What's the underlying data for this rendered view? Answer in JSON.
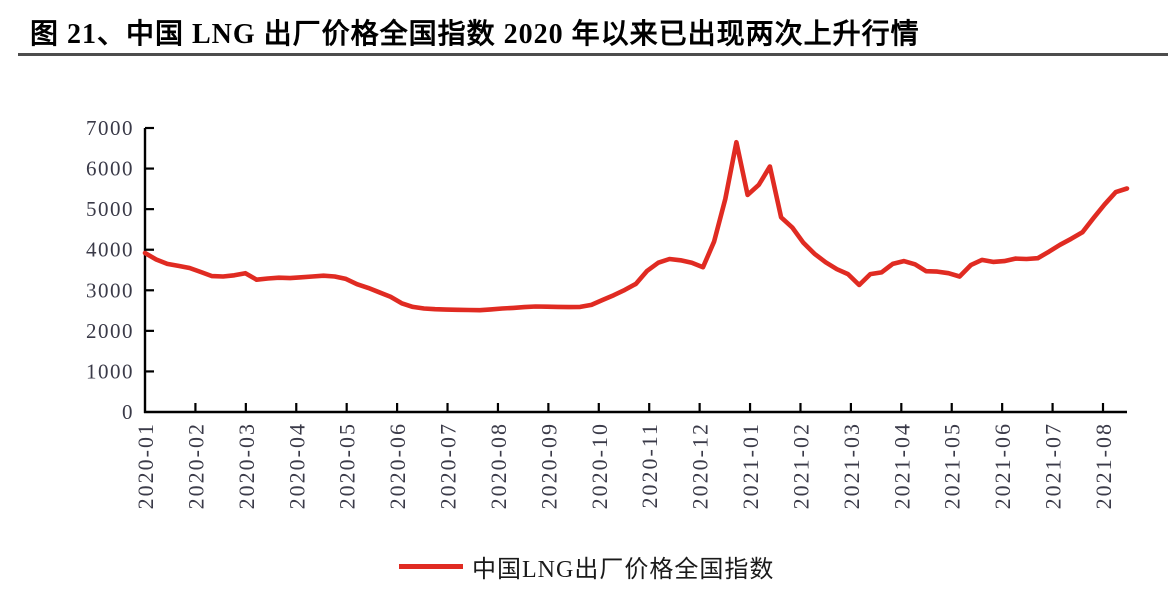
{
  "figure": {
    "title": "图 21、中国 LNG 出厂价格全国指数 2020 年以来已出现两次上升行情",
    "title_color": "#000000",
    "divider_color": "#4d4d4d"
  },
  "chart_data": {
    "type": "line",
    "title": "",
    "xlabel": "",
    "ylabel": "",
    "ylim": [
      0,
      7000
    ],
    "y_ticks": [
      0,
      1000,
      2000,
      3000,
      4000,
      5000,
      6000,
      7000
    ],
    "x_tick_labels": [
      "2020-01",
      "2020-02",
      "2020-03",
      "2020-04",
      "2020-05",
      "2020-06",
      "2020-07",
      "2020-08",
      "2020-09",
      "2020-10",
      "2020-11",
      "2020-12",
      "2021-01",
      "2021-02",
      "2021-03",
      "2021-04",
      "2021-05",
      "2021-06",
      "2021-07",
      "2021-08"
    ],
    "grid": false,
    "legend_position": "bottom",
    "axis_color": "#000000",
    "tick_label_color": "#3a3a48",
    "series": [
      {
        "name": "中国LNG出厂价格全国指数",
        "color": "#e02b22",
        "values": [
          3920,
          3760,
          3650,
          3600,
          3550,
          3450,
          3350,
          3340,
          3370,
          3420,
          3260,
          3290,
          3310,
          3300,
          3320,
          3340,
          3360,
          3340,
          3280,
          3150,
          3060,
          2950,
          2840,
          2680,
          2590,
          2550,
          2535,
          2525,
          2520,
          2515,
          2510,
          2530,
          2550,
          2565,
          2585,
          2600,
          2595,
          2590,
          2585,
          2590,
          2640,
          2760,
          2880,
          3010,
          3160,
          3480,
          3680,
          3770,
          3740,
          3680,
          3570,
          4200,
          5250,
          6650,
          5350,
          5600,
          6050,
          4800,
          4550,
          4170,
          3900,
          3690,
          3520,
          3400,
          3130,
          3400,
          3440,
          3650,
          3720,
          3640,
          3470,
          3460,
          3420,
          3340,
          3620,
          3750,
          3700,
          3720,
          3780,
          3770,
          3790,
          3950,
          4120,
          4270,
          4430,
          4780,
          5120,
          5420,
          5510
        ]
      }
    ]
  }
}
